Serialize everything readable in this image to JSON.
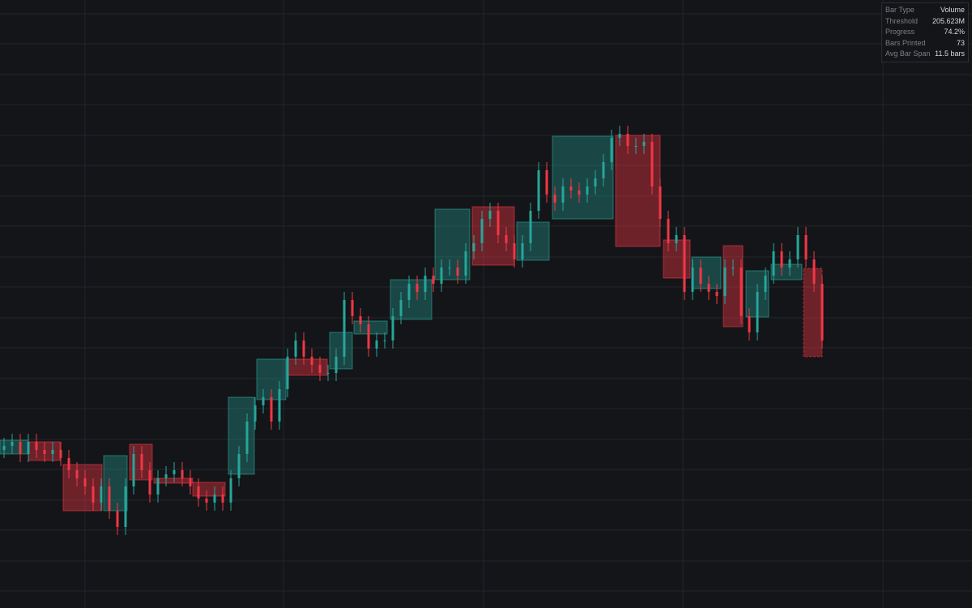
{
  "chart_data": {
    "type": "candlestick",
    "up_color": "#26a69a",
    "down_color": "#f23645",
    "grid": true,
    "xlim": [
      0,
      120
    ],
    "ylim": [
      0,
      75
    ],
    "xticks": [
      10.5,
      35,
      59.7,
      84.3,
      109
    ],
    "yticks": [
      2.1,
      5.8,
      9.6,
      13.3,
      17.1,
      20.8,
      24.6,
      28.3,
      32.1,
      35.8,
      39.6,
      43.3,
      47.1,
      50.8,
      54.6,
      58.3,
      62.1,
      65.8,
      69.6,
      73.3
    ],
    "open": [
      19.5,
      20,
      20.5,
      19,
      20.5,
      19.5,
      19,
      19.5,
      18.5,
      17,
      16,
      15,
      13,
      15,
      12,
      10,
      15,
      19,
      17,
      14,
      16,
      16.5,
      17,
      16,
      15,
      13.5,
      13,
      14,
      13,
      16,
      19,
      23,
      25,
      26,
      23,
      27,
      31,
      33,
      31,
      30,
      29,
      29,
      31,
      38,
      36,
      35,
      32,
      33,
      33,
      36,
      38,
      40,
      39,
      41,
      40,
      42,
      42,
      41,
      44,
      45,
      48,
      49,
      46,
      45,
      43,
      45,
      49,
      54,
      51,
      50,
      52,
      51.5,
      51,
      52,
      53,
      55,
      58,
      58.5,
      57,
      57,
      57.5,
      52,
      48,
      45,
      46,
      39,
      42,
      40,
      39,
      38.5,
      42,
      42,
      36,
      34,
      39,
      41,
      44,
      42,
      43,
      46,
      43,
      40
    ],
    "high": [
      21,
      21.5,
      21.5,
      21.5,
      21.5,
      20.5,
      20.5,
      20.5,
      19.5,
      18,
      17,
      16,
      16,
      16,
      13,
      16,
      20,
      20,
      18,
      17,
      17.5,
      18,
      18,
      17,
      16,
      14.5,
      15,
      15,
      17,
      20,
      24,
      26,
      27,
      27,
      28,
      32,
      34,
      34,
      32,
      31,
      30,
      32,
      39,
      39,
      37,
      36,
      34,
      34,
      37,
      39,
      41,
      41,
      42,
      42,
      43,
      43,
      43,
      45,
      46,
      49,
      50,
      50,
      47,
      46,
      46,
      50,
      55,
      55,
      52,
      53,
      53,
      52.5,
      53,
      54,
      56,
      59,
      59.5,
      59.5,
      58,
      58.5,
      58.5,
      53,
      49,
      47,
      47,
      43,
      43,
      41,
      40,
      43,
      43,
      43,
      37,
      40,
      42,
      45,
      45,
      44,
      47,
      47,
      44,
      41
    ],
    "low": [
      18.5,
      19,
      18,
      18,
      18.5,
      18,
      18,
      17.5,
      16,
      15,
      14,
      12,
      12,
      11,
      9,
      9,
      14,
      16,
      13,
      13,
      15,
      15.5,
      15,
      14,
      12.5,
      12,
      12,
      12,
      12,
      15,
      18,
      22,
      24,
      22,
      22,
      26,
      30,
      30,
      29,
      28,
      28,
      28,
      30,
      35,
      34,
      31,
      31,
      32,
      32,
      35,
      37,
      38,
      38,
      39,
      39,
      41,
      40,
      40,
      43,
      44,
      47,
      45,
      44,
      42,
      42,
      44,
      48,
      50,
      49,
      49,
      50.5,
      50,
      50,
      51,
      52,
      54,
      57,
      56,
      56,
      56,
      51,
      47,
      44,
      44,
      38,
      38,
      39,
      38,
      37.5,
      37.5,
      41,
      35,
      33,
      33,
      38,
      40,
      41,
      41,
      42,
      42,
      39,
      32
    ],
    "close": [
      20,
      20.5,
      19,
      20.5,
      19.5,
      19,
      19.5,
      18.5,
      17,
      16,
      15,
      13,
      15,
      12,
      10,
      15,
      19,
      17,
      14,
      16,
      16.5,
      17,
      16,
      15,
      13.5,
      13,
      14,
      13,
      16,
      19,
      23,
      25,
      26,
      23,
      27,
      31,
      33,
      31,
      30,
      29,
      29,
      31,
      38,
      36,
      35,
      32,
      33,
      33,
      36,
      38,
      40,
      39,
      41,
      40,
      42,
      42,
      41,
      44,
      45,
      48,
      49,
      46,
      45,
      43,
      45,
      49,
      54,
      51,
      50,
      52,
      51.5,
      51,
      52,
      53,
      55,
      58,
      58.5,
      57,
      57,
      57.5,
      52,
      48,
      45,
      46,
      39,
      42,
      40,
      39,
      38.5,
      42,
      42,
      36,
      34,
      39,
      41,
      44,
      42,
      43,
      46,
      43,
      40,
      33
    ],
    "boxes": [
      {
        "start": 0,
        "end": 3.5,
        "open": 19,
        "close": 20.7
      },
      {
        "start": 3.5,
        "end": 7.4,
        "open": 20.5,
        "close": 18.2
      },
      {
        "start": 7.8,
        "end": 12.6,
        "open": 17.7,
        "close": 12
      },
      {
        "start": 12.8,
        "end": 15.7,
        "open": 12,
        "close": 18.8
      },
      {
        "start": 16,
        "end": 18.8,
        "open": 20.2,
        "close": 15.8
      },
      {
        "start": 19,
        "end": 23.8,
        "open": 16,
        "close": 15.4
      },
      {
        "start": 23.8,
        "end": 27.8,
        "open": 15.5,
        "close": 13.8
      },
      {
        "start": 28.2,
        "end": 31.4,
        "open": 16.5,
        "close": 26
      },
      {
        "start": 31.7,
        "end": 35.3,
        "open": 25.7,
        "close": 30.7
      },
      {
        "start": 35.6,
        "end": 40.4,
        "open": 30.7,
        "close": 28.7
      },
      {
        "start": 40.7,
        "end": 43.5,
        "open": 29.5,
        "close": 34
      },
      {
        "start": 43.7,
        "end": 47.8,
        "open": 33.8,
        "close": 35.4
      },
      {
        "start": 48.2,
        "end": 53.3,
        "open": 35.6,
        "close": 40.5
      },
      {
        "start": 53.7,
        "end": 58,
        "open": 40.5,
        "close": 49.2
      },
      {
        "start": 58.3,
        "end": 63.5,
        "open": 49.5,
        "close": 42.3
      },
      {
        "start": 63.8,
        "end": 67.8,
        "open": 42.9,
        "close": 47.6
      },
      {
        "start": 68.2,
        "end": 75.7,
        "open": 48,
        "close": 58.2
      },
      {
        "start": 76,
        "end": 81.5,
        "open": 58.3,
        "close": 44.6
      },
      {
        "start": 81.9,
        "end": 85.2,
        "open": 45.4,
        "close": 40.7
      },
      {
        "start": 85.4,
        "end": 89,
        "open": 39.4,
        "close": 43.3
      },
      {
        "start": 89.3,
        "end": 91.7,
        "open": 44.7,
        "close": 34.7
      },
      {
        "start": 92.1,
        "end": 94.9,
        "open": 35.9,
        "close": 41.6
      },
      {
        "start": 95.2,
        "end": 99,
        "open": 40.5,
        "close": 42.4
      },
      {
        "start": 99.2,
        "end": 101.5,
        "open": 41.9,
        "close": 31
      }
    ]
  },
  "info_panel": {
    "rows": [
      [
        "Bar Type",
        "Volume"
      ],
      [
        "Threshold",
        "205.623M"
      ],
      [
        "Progress",
        "74.2%"
      ],
      [
        "Bars Printed",
        "73"
      ],
      [
        "Avg Bar Span",
        "11.5 bars"
      ]
    ]
  }
}
